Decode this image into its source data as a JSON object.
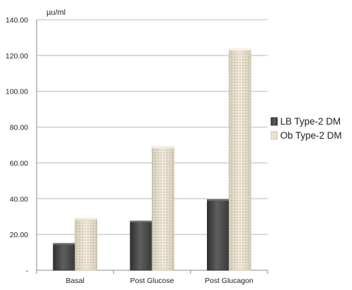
{
  "chart_data": {
    "type": "bar",
    "title": "",
    "xlabel": "",
    "ylabel": "µu/ml",
    "ylim": [
      0,
      140
    ],
    "ytick_values": [
      0,
      20,
      40,
      60,
      80,
      100,
      120,
      140
    ],
    "ytick_labels": [
      "-",
      "20.00",
      "40.00",
      "60.00",
      "80.00",
      "100.00",
      "120.00",
      "140.00"
    ],
    "categories": [
      "Basal",
      "Post Glucose",
      "Post Glucagon"
    ],
    "series": [
      {
        "name": "LB Type-2 DM",
        "values": [
          15,
          27.5,
          39.5
        ],
        "color": "#4a4a4a"
      },
      {
        "name": "Ob Type-2 DM",
        "values": [
          29,
          69,
          123.5
        ],
        "color": "#e6dcc8"
      }
    ],
    "grid": true,
    "legend_position": "right"
  }
}
